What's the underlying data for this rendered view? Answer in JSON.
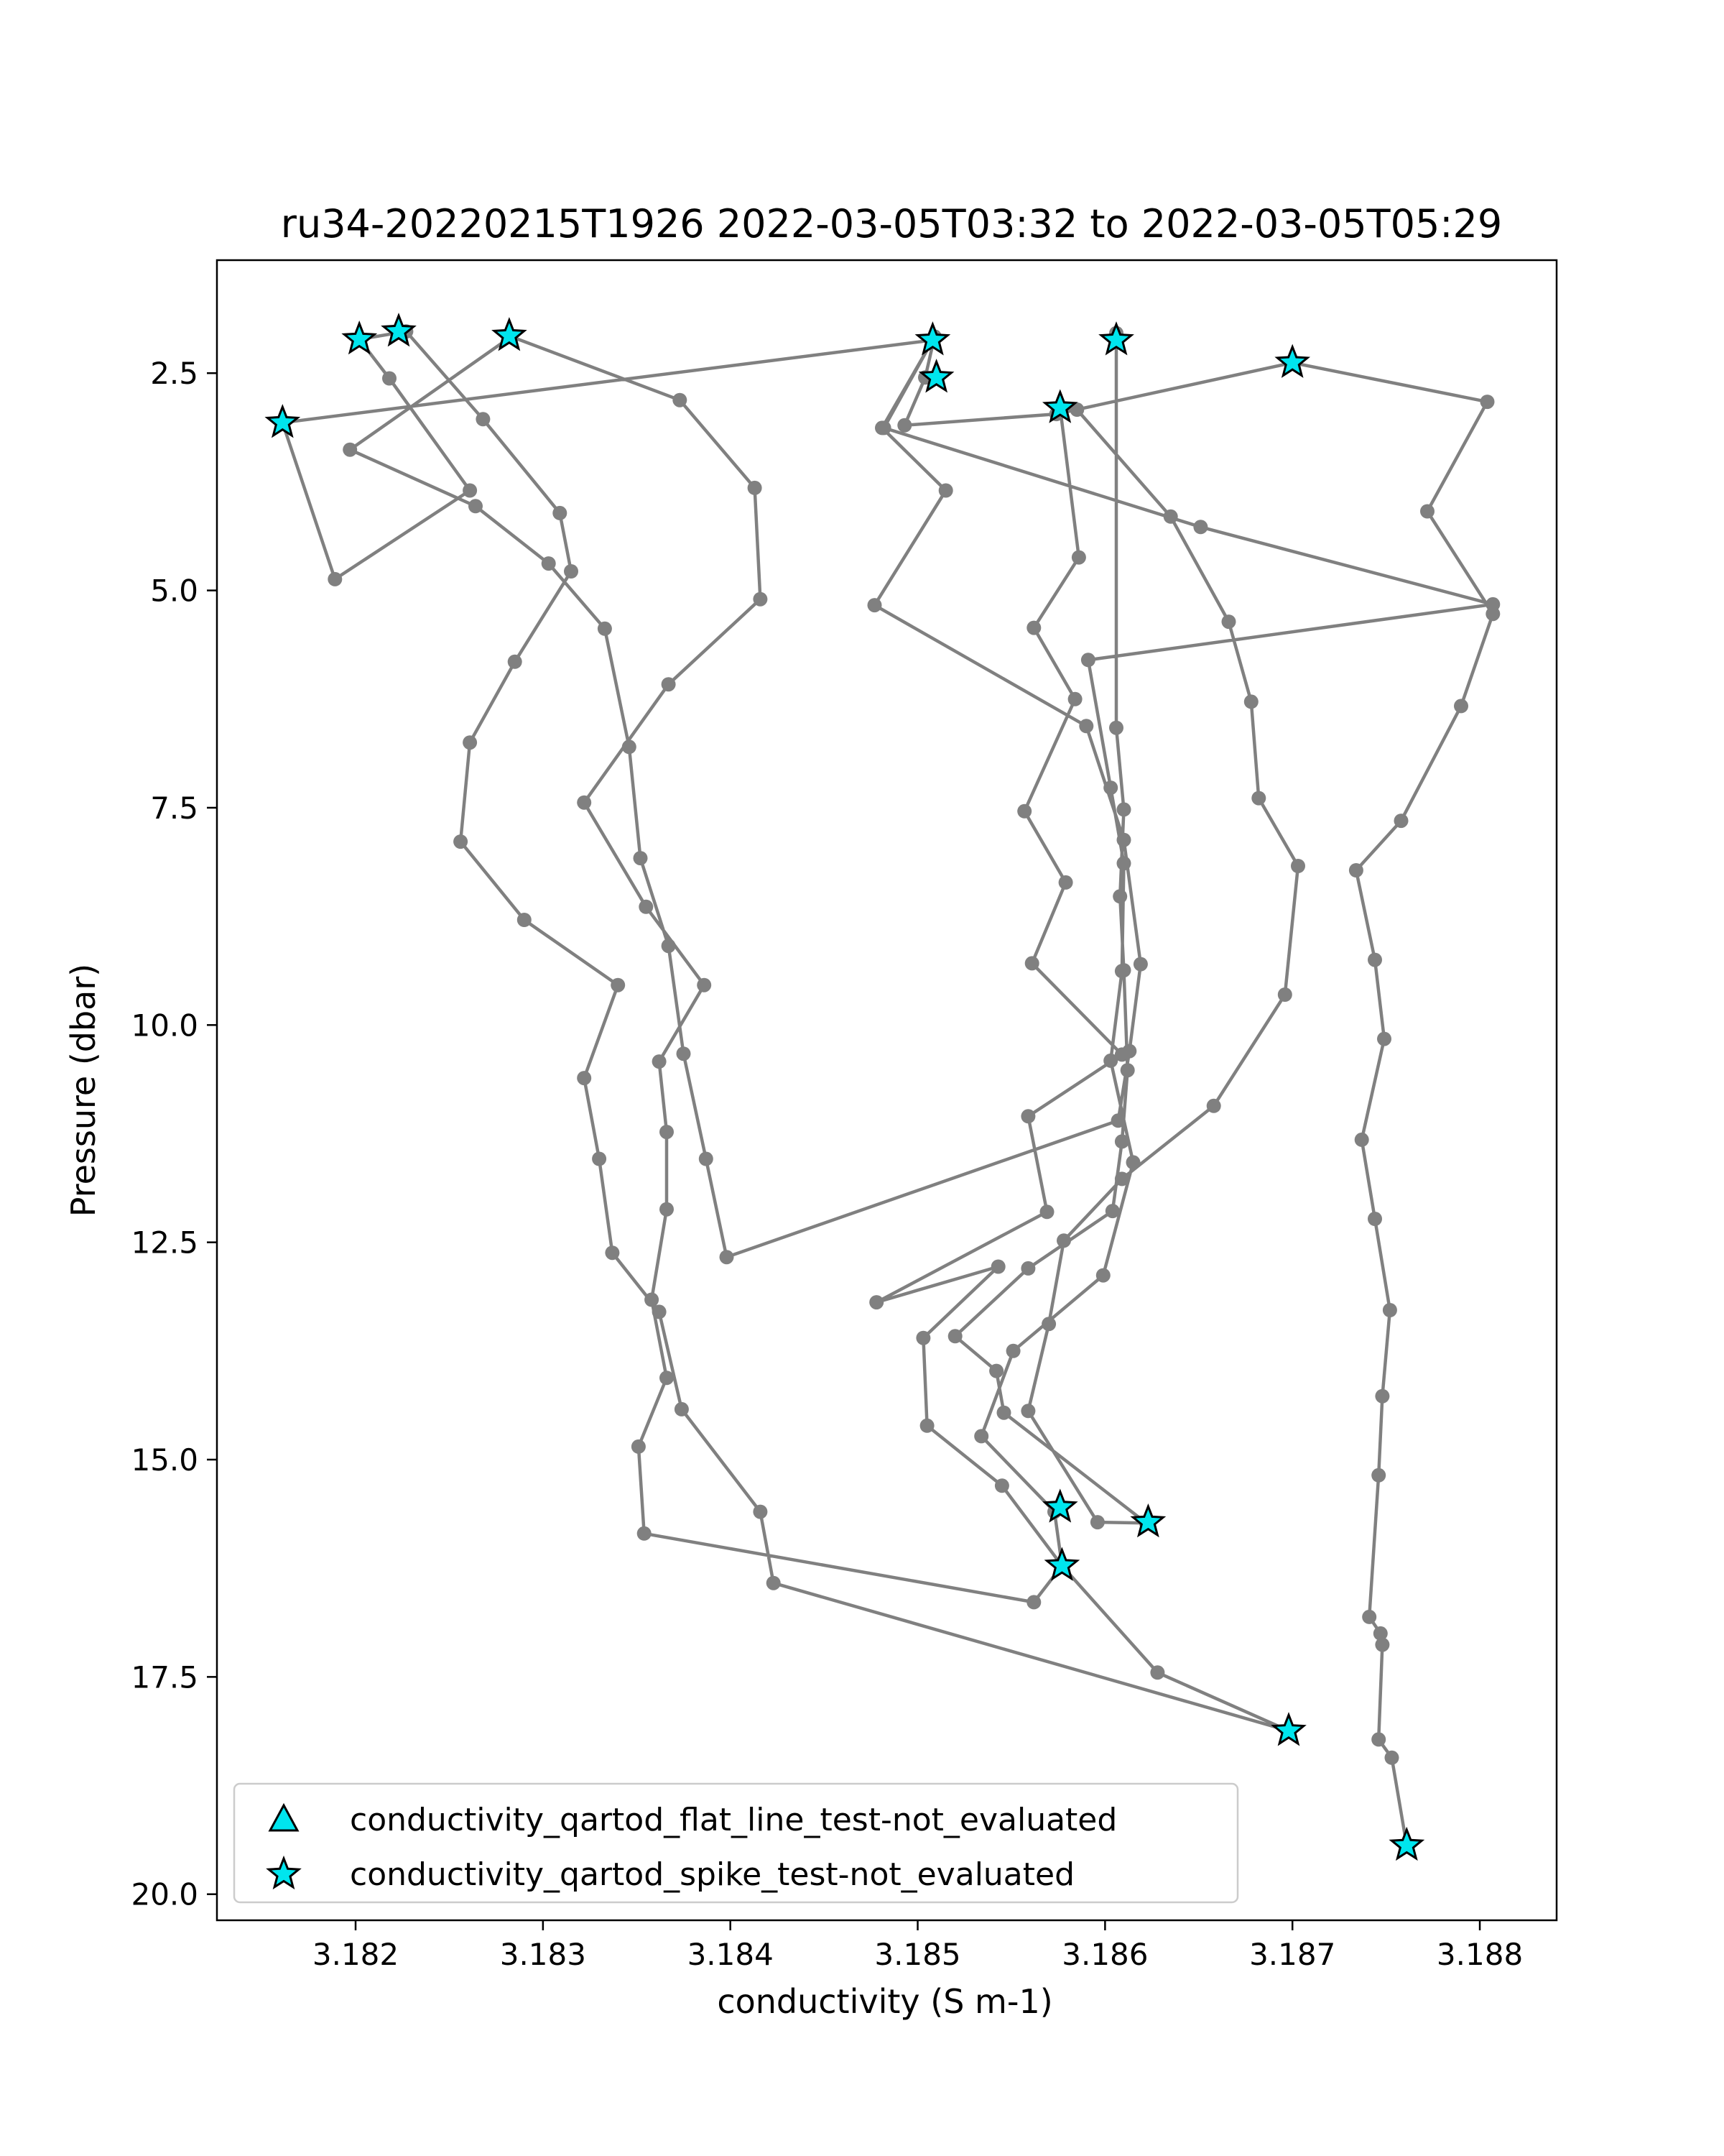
{
  "chart_data": {
    "type": "scatter",
    "title": "ru34-20220215T1926 2022-03-05T03:32 to 2022-03-05T05:29",
    "xlabel": "conductivity (S m-1)",
    "ylabel": "Pressure (dbar)",
    "xlim": [
      3.18126,
      3.18841
    ],
    "ylim": [
      20.3,
      1.2
    ],
    "y_inverted": true,
    "x_ticks": [
      3.182,
      3.183,
      3.184,
      3.185,
      3.186,
      3.187,
      3.188
    ],
    "x_tick_labels": [
      "3.182",
      "3.183",
      "3.184",
      "3.185",
      "3.186",
      "3.187",
      "3.188"
    ],
    "y_ticks": [
      2.5,
      5.0,
      7.5,
      10.0,
      12.5,
      15.0,
      17.5,
      20.0
    ],
    "y_tick_labels": [
      "2.5",
      "5.0",
      "7.5",
      "10.0",
      "12.5",
      "15.0",
      "17.5",
      "20.0"
    ],
    "grid": false,
    "legend_position": "lower-left",
    "colors": {
      "line": "#808080",
      "marker_fill": "#00e5ee",
      "marker_edge": "#000000"
    },
    "profile": [
      [
        3.18761,
        19.44
      ],
      [
        3.18753,
        18.43
      ],
      [
        3.18746,
        18.22
      ],
      [
        3.18748,
        17.13
      ],
      [
        3.18747,
        17.0
      ],
      [
        3.18741,
        16.81
      ],
      [
        3.18746,
        15.18
      ],
      [
        3.18748,
        14.27
      ],
      [
        3.18752,
        13.28
      ],
      [
        3.18744,
        12.23
      ],
      [
        3.18737,
        11.32
      ],
      [
        3.18749,
        10.16
      ],
      [
        3.18744,
        9.25
      ],
      [
        3.18734,
        8.22
      ],
      [
        3.18758,
        7.65
      ],
      [
        3.1879,
        6.33
      ],
      [
        3.18807,
        5.27
      ],
      [
        3.18772,
        4.09
      ],
      [
        3.18804,
        2.83
      ],
      [
        3.187,
        2.38
      ],
      [
        3.18574,
        2.97
      ],
      [
        3.18493,
        3.1
      ],
      [
        3.18504,
        2.55
      ],
      [
        3.18509,
        2.08
      ],
      [
        3.18482,
        3.13
      ],
      [
        3.18651,
        4.27
      ],
      [
        3.18807,
        5.16
      ],
      [
        3.18591,
        5.8
      ],
      [
        3.18603,
        7.27
      ],
      [
        3.1861,
        8.14
      ],
      [
        3.18609,
        9.38
      ],
      [
        3.18603,
        10.41
      ],
      [
        3.18615,
        11.58
      ],
      [
        3.18599,
        12.88
      ],
      [
        3.18551,
        13.75
      ],
      [
        3.18534,
        14.73
      ],
      [
        3.18573,
        15.6
      ],
      [
        3.18577,
        16.22
      ],
      [
        3.18628,
        17.45
      ],
      [
        3.18698,
        18.12
      ],
      [
        3.18423,
        16.42
      ],
      [
        3.18416,
        15.6
      ],
      [
        3.18374,
        14.42
      ],
      [
        3.18362,
        13.3
      ],
      [
        3.18337,
        12.62
      ],
      [
        3.1833,
        11.54
      ],
      [
        3.18322,
        10.61
      ],
      [
        3.1834,
        9.54
      ],
      [
        3.1829,
        8.79
      ],
      [
        3.18256,
        7.89
      ],
      [
        3.18261,
        6.75
      ],
      [
        3.18285,
        5.82
      ],
      [
        3.18315,
        4.78
      ],
      [
        3.18309,
        4.11
      ],
      [
        3.18268,
        3.03
      ],
      [
        3.18227,
        2.02
      ],
      [
        3.18202,
        2.11
      ],
      [
        3.18218,
        2.56
      ],
      [
        3.18261,
        3.85
      ],
      [
        3.18189,
        4.87
      ],
      [
        3.18161,
        3.07
      ],
      [
        3.18508,
        2.12
      ],
      [
        3.18481,
        3.13
      ],
      [
        3.18515,
        3.85
      ],
      [
        3.18477,
        5.17
      ],
      [
        3.1859,
        6.56
      ],
      [
        3.1861,
        7.87
      ],
      [
        3.18619,
        9.3
      ],
      [
        3.18613,
        10.3
      ],
      [
        3.18607,
        11.1
      ],
      [
        3.18398,
        12.67
      ],
      [
        3.18387,
        11.54
      ],
      [
        3.18375,
        10.33
      ],
      [
        3.18367,
        9.09
      ],
      [
        3.18352,
        8.08
      ],
      [
        3.18346,
        6.8
      ],
      [
        3.18333,
        5.44
      ],
      [
        3.18303,
        4.69
      ],
      [
        3.18264,
        4.03
      ],
      [
        3.18197,
        3.38
      ],
      [
        3.18283,
        2.08
      ],
      [
        3.18373,
        2.81
      ],
      [
        3.18413,
        3.82
      ],
      [
        3.18416,
        5.1
      ],
      [
        3.18367,
        6.08
      ],
      [
        3.18322,
        7.44
      ],
      [
        3.18355,
        8.64
      ],
      [
        3.18386,
        9.54
      ],
      [
        3.18362,
        10.42
      ],
      [
        3.18366,
        11.23
      ],
      [
        3.18366,
        12.12
      ],
      [
        3.18358,
        13.16
      ],
      [
        3.18366,
        14.06
      ],
      [
        3.18351,
        14.85
      ],
      [
        3.18354,
        15.85
      ],
      [
        3.18562,
        16.64
      ],
      [
        3.18577,
        16.22
      ],
      [
        3.18545,
        15.3
      ],
      [
        3.18505,
        14.61
      ],
      [
        3.18503,
        13.6
      ],
      [
        3.18543,
        12.78
      ],
      [
        3.18478,
        13.19
      ],
      [
        3.18569,
        12.15
      ],
      [
        3.18559,
        11.05
      ],
      [
        3.18609,
        10.34
      ],
      [
        3.18561,
        9.29
      ],
      [
        3.18579,
        8.36
      ],
      [
        3.18557,
        7.54
      ],
      [
        3.18584,
        6.25
      ],
      [
        3.18562,
        5.43
      ],
      [
        3.18586,
        4.62
      ],
      [
        3.18576,
        2.9
      ],
      [
        3.18585,
        2.92
      ],
      [
        3.18635,
        4.15
      ],
      [
        3.18666,
        5.36
      ],
      [
        3.18678,
        6.28
      ],
      [
        3.18682,
        7.39
      ],
      [
        3.18703,
        8.17
      ],
      [
        3.18696,
        9.65
      ],
      [
        3.18658,
        10.93
      ],
      [
        3.18609,
        11.77
      ],
      [
        3.18578,
        12.48
      ],
      [
        3.1857,
        13.44
      ],
      [
        3.18559,
        14.44
      ],
      [
        3.18596,
        15.72
      ],
      [
        3.18622,
        15.73
      ],
      [
        3.18546,
        14.46
      ],
      [
        3.18542,
        13.98
      ],
      [
        3.1852,
        13.58
      ],
      [
        3.18559,
        12.8
      ],
      [
        3.18604,
        12.14
      ],
      [
        3.18609,
        11.34
      ],
      [
        3.18612,
        10.52
      ],
      [
        3.1861,
        9.37
      ],
      [
        3.18608,
        8.52
      ],
      [
        3.1861,
        7.52
      ],
      [
        3.18606,
        6.58
      ],
      [
        3.18606,
        2.04
      ]
    ],
    "spike_points": [
      [
        3.18761,
        19.44
      ],
      [
        3.18698,
        18.12
      ],
      [
        3.18577,
        16.22
      ],
      [
        3.18576,
        15.55
      ],
      [
        3.18623,
        15.72
      ],
      [
        3.18161,
        3.07
      ],
      [
        3.18202,
        2.11
      ],
      [
        3.18223,
        2.02
      ],
      [
        3.18282,
        2.07
      ],
      [
        3.18508,
        2.12
      ],
      [
        3.1851,
        2.55
      ],
      [
        3.18576,
        2.9
      ],
      [
        3.18606,
        2.12
      ],
      [
        3.187,
        2.38
      ]
    ],
    "legend": [
      {
        "marker": "triangle",
        "label": "conductivity_qartod_flat_line_test-not_evaluated"
      },
      {
        "marker": "star",
        "label": "conductivity_qartod_spike_test-not_evaluated"
      }
    ]
  }
}
